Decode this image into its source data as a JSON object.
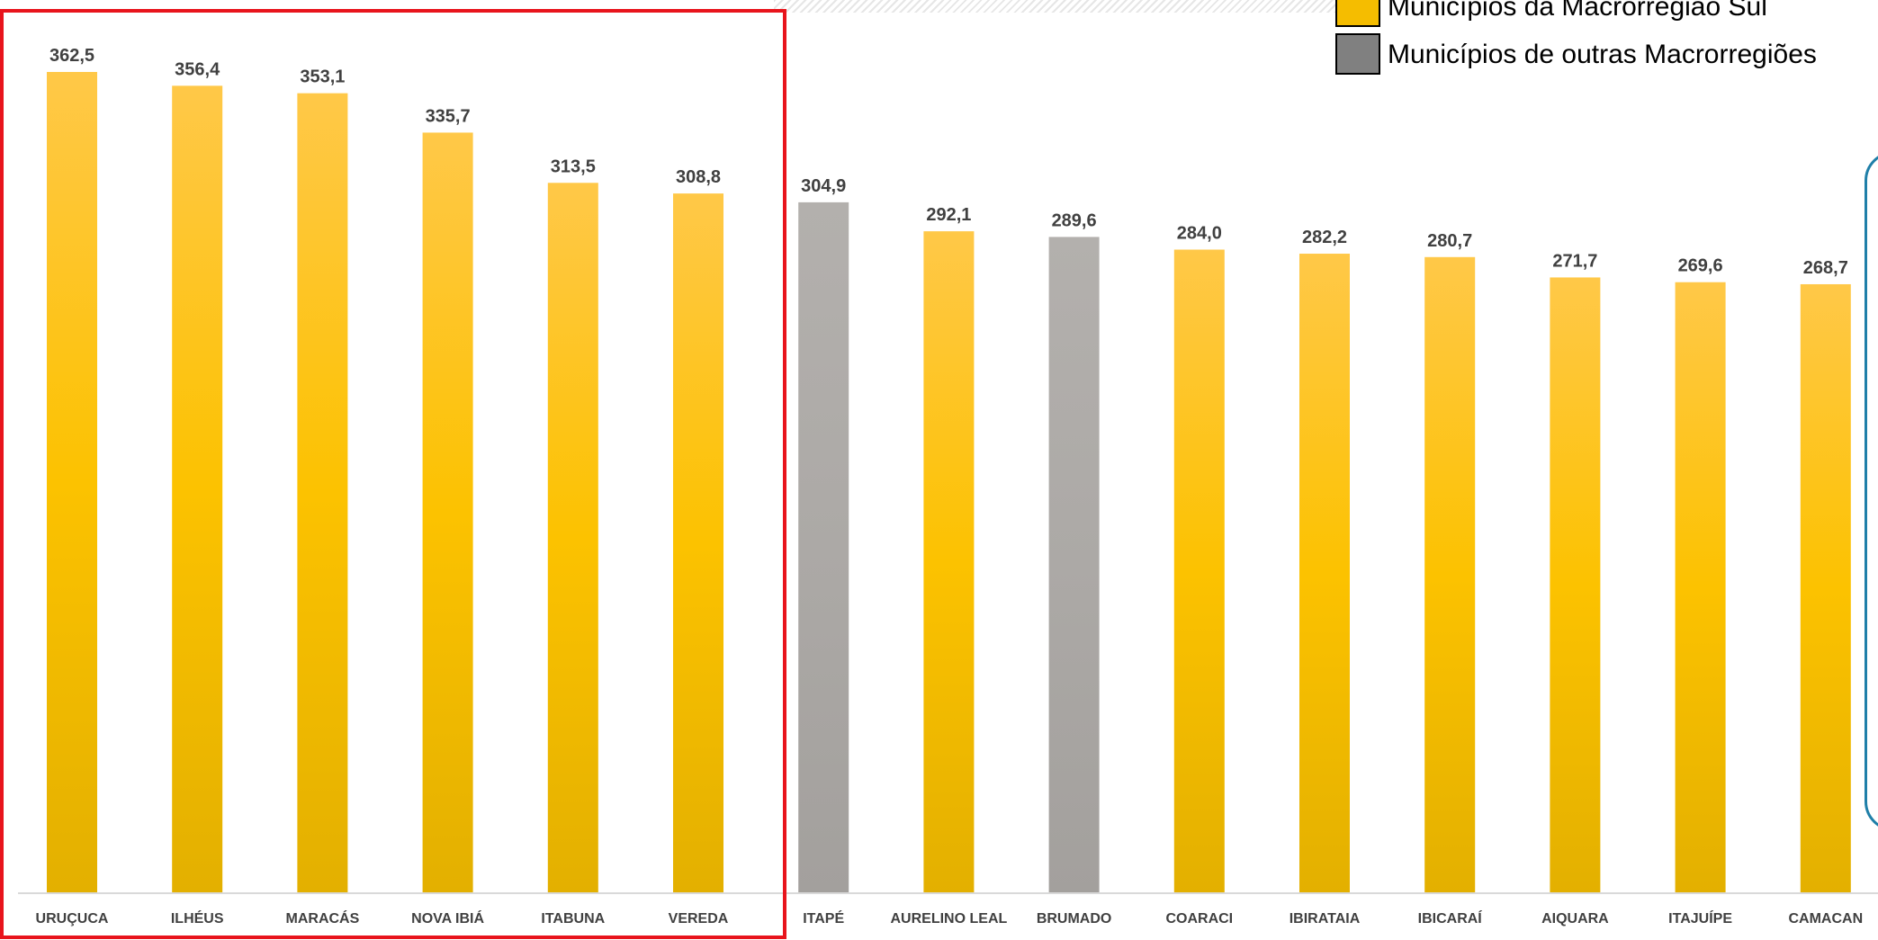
{
  "legend": {
    "items": [
      {
        "label": "Municípios da Macrorregião Sul",
        "color": "#f5bd00"
      },
      {
        "label": "Municípios de outras Macrorregiões",
        "color": "#808080"
      }
    ]
  },
  "colors": {
    "in_region_bar": "#fcc200",
    "other_region_bar": "#aca9a6",
    "highlight_box": "#e8141c",
    "note_box_border": "#1f7fa8"
  },
  "chart_data": {
    "type": "bar",
    "categories": [
      "URUÇUCA",
      "ILHÉUS",
      "MARACÁS",
      "NOVA IBIÁ",
      "ITABUNA",
      "VEREDA",
      "ITAPÉ",
      "AURELINO LEAL",
      "BRUMADO",
      "COARACI",
      "IBIRATAIA",
      "IBICARAÍ",
      "AIQUARA",
      "ITAJUÍPE",
      "CAMACAN"
    ],
    "values": [
      362.5,
      356.4,
      353.1,
      335.7,
      313.5,
      308.8,
      304.9,
      292.1,
      289.6,
      284.0,
      282.2,
      280.7,
      271.7,
      269.6,
      268.7
    ],
    "value_labels": [
      "362,5",
      "356,4",
      "353,1",
      "335,7",
      "313,5",
      "308,8",
      "304,9",
      "292,1",
      "289,6",
      "284,0",
      "282,2",
      "280,7",
      "271,7",
      "269,6",
      "268,7"
    ],
    "groups": [
      "sul",
      "sul",
      "sul",
      "sul",
      "sul",
      "sul",
      "outras",
      "sul",
      "outras",
      "sul",
      "sul",
      "sul",
      "sul",
      "sul",
      "sul"
    ],
    "ylim": [
      0,
      380
    ],
    "grid": false,
    "legend_position": "top-right"
  }
}
